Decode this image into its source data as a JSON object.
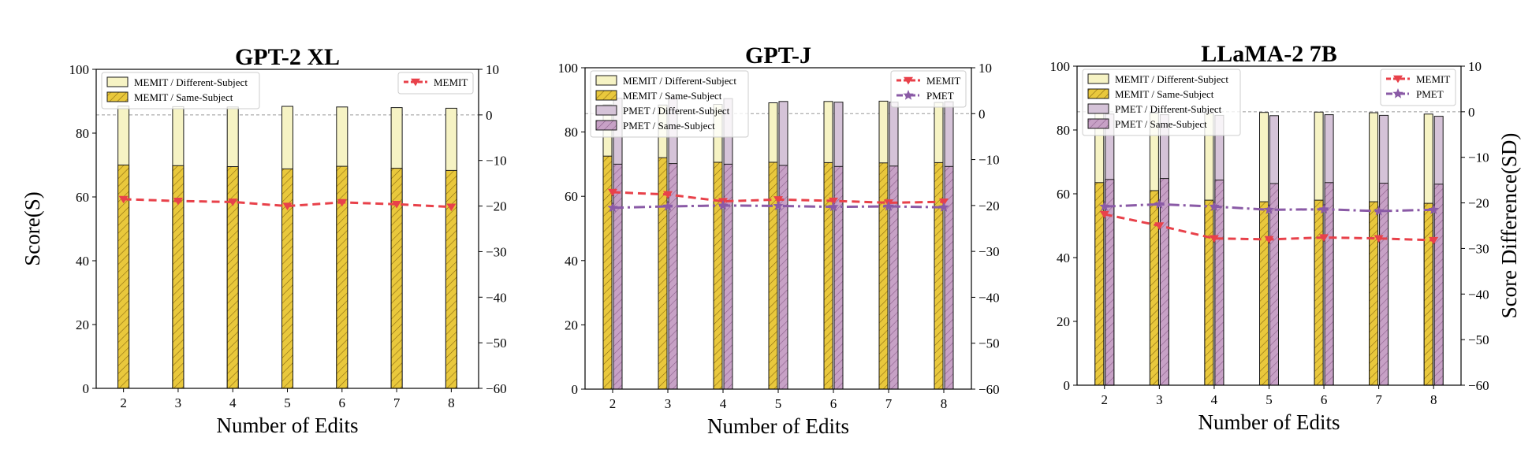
{
  "colors": {
    "memit_diff": "#f6f3c4",
    "memit_same": "#e9c83c",
    "pmet_diff": "#d5c3d8",
    "pmet_same": "#c7a1c6",
    "memit_line": "#e8414a",
    "pmet_line": "#8a5aa6",
    "bar_edge": "#1a1a1a",
    "ref_line": "#999999"
  },
  "chart_data": [
    {
      "type": "bar",
      "title": "GPT-2 XL",
      "xlabel": "Number of Edits",
      "ylabel": "Score(S)",
      "y2label": "",
      "categories": [
        "2",
        "3",
        "4",
        "5",
        "6",
        "7",
        "8"
      ],
      "ylim": [
        0,
        100
      ],
      "y2lim": [
        -60,
        10
      ],
      "yticks": [
        "0",
        "20",
        "40",
        "60",
        "80",
        "100"
      ],
      "y2ticks": [
        "−60",
        "−50",
        "−40",
        "−30",
        "−20",
        "−10",
        "0",
        "10"
      ],
      "bar_series": [
        {
          "name": "MEMIT / Different-Subject",
          "style": "memit_diff",
          "values": [
            88.5,
            88.3,
            88.2,
            88.4,
            88.2,
            88.0,
            87.8
          ]
        },
        {
          "name": "MEMIT / Same-Subject",
          "style": "memit_same",
          "values": [
            70.0,
            69.8,
            69.5,
            68.8,
            69.6,
            69.0,
            68.3
          ]
        }
      ],
      "line_series": [
        {
          "name": "MEMIT",
          "style": "memit_line",
          "marker": "triangle-down",
          "values": [
            -18.5,
            -18.9,
            -19.1,
            -20.0,
            -19.2,
            -19.6,
            -20.2
          ]
        }
      ],
      "legend_bars": "top-left",
      "legend_lines": "top-right"
    },
    {
      "type": "bar",
      "title": "GPT-J",
      "xlabel": "Number of Edits",
      "ylabel": "",
      "y2label": "",
      "categories": [
        "2",
        "3",
        "4",
        "5",
        "6",
        "7",
        "8"
      ],
      "ylim": [
        0,
        100
      ],
      "y2lim": [
        -60,
        10
      ],
      "yticks": [
        "0",
        "20",
        "40",
        "60",
        "80",
        "100"
      ],
      "y2ticks": [
        "−60",
        "−50",
        "−40",
        "−30",
        "−20",
        "−10",
        "0",
        "10"
      ],
      "bar_series": [
        {
          "name": "MEMIT / Different-Subject",
          "style": "memit_diff",
          "values": [
            88.5,
            88.4,
            88.6,
            89.1,
            89.5,
            89.6,
            89.2
          ]
        },
        {
          "name": "MEMIT / Same-Subject",
          "style": "memit_same",
          "values": [
            72.5,
            72.0,
            70.6,
            70.6,
            70.5,
            70.4,
            70.5
          ]
        },
        {
          "name": "PMET / Different-Subject",
          "style": "pmet_diff",
          "values": [
            90.5,
            90.6,
            90.4,
            89.5,
            89.3,
            89.3,
            89.4
          ]
        },
        {
          "name": "PMET / Same-Subject",
          "style": "pmet_same",
          "values": [
            70.0,
            70.2,
            70.0,
            69.6,
            69.3,
            69.4,
            69.3
          ]
        }
      ],
      "line_series": [
        {
          "name": "MEMIT",
          "style": "memit_line",
          "marker": "triangle-down",
          "values": [
            -17.1,
            -17.6,
            -19.1,
            -18.7,
            -19.0,
            -19.4,
            -19.2
          ]
        },
        {
          "name": "PMET",
          "style": "pmet_line",
          "marker": "star",
          "values": [
            -20.5,
            -20.2,
            -20.0,
            -20.1,
            -20.3,
            -20.2,
            -20.4
          ]
        }
      ],
      "legend_bars": "top-left",
      "legend_lines": "top-right"
    },
    {
      "type": "bar",
      "title": "LLaMA-2 7B",
      "xlabel": "Number of Edits",
      "ylabel": "",
      "y2label": "Score Difference(SD)",
      "categories": [
        "2",
        "3",
        "4",
        "5",
        "6",
        "7",
        "8"
      ],
      "ylim": [
        0,
        100
      ],
      "y2lim": [
        -60,
        10
      ],
      "yticks": [
        "0",
        "20",
        "40",
        "60",
        "80",
        "100"
      ],
      "y2ticks": [
        "−60",
        "−50",
        "−40",
        "−30",
        "−20",
        "−10",
        "0",
        "10"
      ],
      "bar_series": [
        {
          "name": "MEMIT / Different-Subject",
          "style": "memit_diff",
          "values": [
            85.5,
            85.3,
            85.2,
            85.5,
            85.6,
            85.4,
            85.0
          ]
        },
        {
          "name": "MEMIT / Same-Subject",
          "style": "memit_same",
          "values": [
            63.5,
            61.0,
            58.0,
            57.5,
            58.0,
            57.5,
            57.0
          ]
        },
        {
          "name": "PMET / Different-Subject",
          "style": "pmet_diff",
          "values": [
            85.0,
            84.8,
            84.6,
            84.5,
            84.8,
            84.6,
            84.3
          ]
        },
        {
          "name": "PMET / Same-Subject",
          "style": "pmet_same",
          "values": [
            64.5,
            64.8,
            64.3,
            63.2,
            63.5,
            63.3,
            63.0
          ]
        }
      ],
      "line_series": [
        {
          "name": "MEMIT",
          "style": "memit_line",
          "marker": "triangle-down",
          "values": [
            -22.5,
            -25.0,
            -27.8,
            -28.0,
            -27.6,
            -27.8,
            -28.2
          ]
        },
        {
          "name": "PMET",
          "style": "pmet_line",
          "marker": "star",
          "values": [
            -20.8,
            -20.3,
            -20.8,
            -21.5,
            -21.4,
            -21.8,
            -21.5
          ]
        }
      ],
      "legend_bars": "top-left",
      "legend_lines": "top-right"
    }
  ]
}
